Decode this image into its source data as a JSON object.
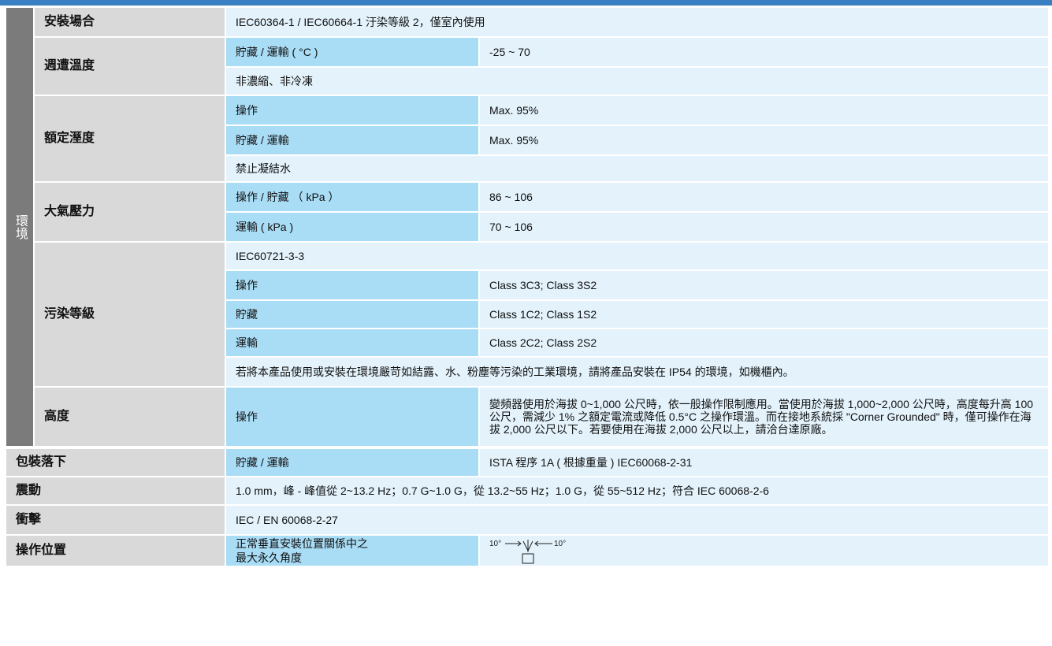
{
  "group": "環境",
  "install": {
    "label": "安裝場合",
    "value": "IEC60364-1 / IEC60664-1 汙染等級 2，僅室內使用"
  },
  "ambient_temp": {
    "label": "週遭溫度",
    "rows": [
      [
        "貯藏 / 運輸 ( °C )",
        "-25 ~ 70"
      ]
    ],
    "note": "非濃縮、非冷凍"
  },
  "humidity": {
    "label": "額定溼度",
    "rows": [
      [
        "操作",
        "Max. 95%"
      ],
      [
        "貯藏 / 運輸",
        "Max. 95%"
      ]
    ],
    "note": "禁止凝結水"
  },
  "pressure": {
    "label": "大氣壓力",
    "rows": [
      [
        "操作 / 貯藏 （ kPa ）",
        "86 ~ 106"
      ],
      [
        "運輸 ( kPa )",
        "70 ~ 106"
      ]
    ]
  },
  "pollution": {
    "label": "污染等級",
    "standard": "IEC60721-3-3",
    "rows": [
      [
        "操作",
        "Class 3C3; Class 3S2"
      ],
      [
        "貯藏",
        "Class 1C2; Class 1S2"
      ],
      [
        "運輸",
        "Class 2C2; Class 2S2"
      ]
    ],
    "note": "若將本產品使用或安裝在環境嚴苛如結露、水、粉塵等污染的工業環境，請將產品安裝在 IP54 的環境，如機櫃內。"
  },
  "altitude": {
    "label": "高度",
    "rows": [
      [
        "操作",
        "變頻器使用於海拔 0~1,000 公尺時，依一般操作限制應用。當使用於海拔 1,000~2,000 公尺時，高度每升高 100 公尺，需減少 1% 之額定電流或降低 0.5°C 之操作環溫。而在接地系統採 \"Corner Grounded\" 時，僅可操作在海拔 2,000 公尺以下。若要使用在海拔 2,000 公尺以上，請洽台達原廠。"
      ]
    ]
  },
  "drop": {
    "label": "包裝落下",
    "rows": [
      [
        "貯藏 / 運輸",
        "ISTA 程序 1A ( 根據重量 ) IEC60068-2-31"
      ]
    ]
  },
  "vibration": {
    "label": "震動",
    "value": "1.0 mm，峰 - 峰值從 2~13.2 Hz；0.7 G~1.0 G，從 13.2~55 Hz；1.0 G，從 55~512 Hz；符合 IEC 60068-2-6"
  },
  "shock": {
    "label": "衝擊",
    "value": "IEC / EN 60068-2-27"
  },
  "position": {
    "label": "操作位置",
    "condition_lines": [
      "正常垂直安裝位置關係中之",
      "最大永久角度"
    ],
    "diagram": {
      "left": "10°",
      "right": "10°"
    }
  }
}
